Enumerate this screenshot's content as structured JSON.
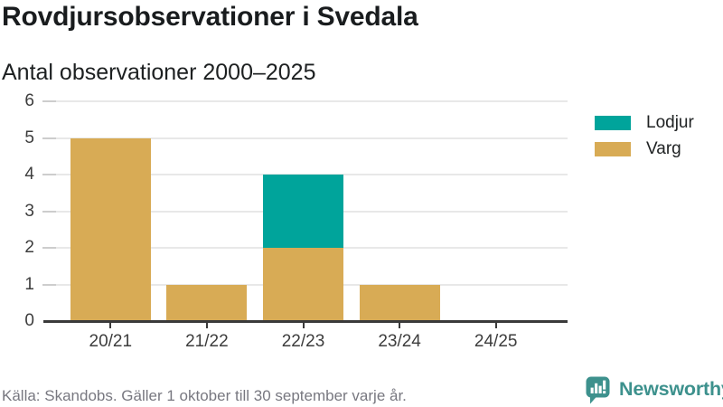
{
  "header": {
    "title": "Rovdjursobservationer i Svedala",
    "subtitle": "Antal observationer 2000–2025"
  },
  "legend": [
    {
      "label": "Lodjur",
      "color": "#00a49b"
    },
    {
      "label": "Varg",
      "color": "#d8ab55"
    }
  ],
  "footer": {
    "source": "Källa: Skandobs. Gäller 1 oktober till 30 september varje år."
  },
  "logo": {
    "text": "Newsworthy",
    "color": "#3d918d",
    "icon": "newsworthy-speech-bubble-bar-chart-icon"
  },
  "colors": {
    "lodjur": "#00a49b",
    "varg": "#d8ab55",
    "gridline": "#e8e8e8",
    "ytick": "#cdcdcd",
    "axis": "#3a3a3a",
    "axis_text": "#3d3d3d",
    "title_text": "#191c1e",
    "muted_text": "#787880"
  },
  "chart_data": {
    "type": "bar",
    "stacked": true,
    "title": "Rovdjursobservationer i Svedala",
    "subtitle": "Antal observationer 2000–2025",
    "categories": [
      "20/21",
      "21/22",
      "22/23",
      "23/24",
      "24/25"
    ],
    "series": [
      {
        "name": "Varg",
        "color": "#d8ab55",
        "values": [
          5,
          1,
          2,
          1,
          0
        ]
      },
      {
        "name": "Lodjur",
        "color": "#00a49b",
        "values": [
          0,
          0,
          2,
          0,
          0
        ]
      }
    ],
    "totals": [
      5,
      1,
      4,
      1,
      0
    ],
    "xlabel": "",
    "ylabel": "",
    "ylim": [
      0,
      6
    ],
    "yticks": [
      0,
      1,
      2,
      3,
      4,
      5,
      6
    ],
    "grid": "horizontal",
    "legend_position": "right"
  }
}
